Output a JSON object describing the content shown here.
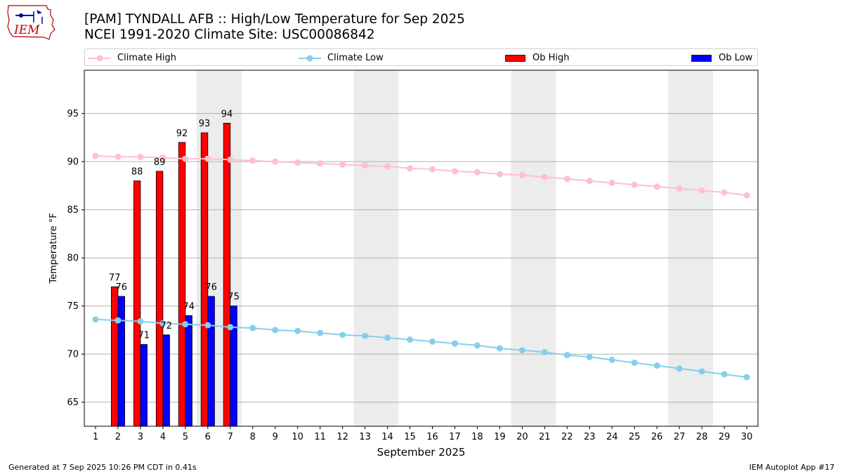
{
  "header": {
    "title_line1": "[PAM] TYNDALL AFB :: High/Low Temperature for Sep 2025",
    "title_line2": "NCEI 1991-2020 Climate Site: USC00086842",
    "logo_text": "IEM"
  },
  "footer": {
    "generated": "Generated at 7 Sep 2025 10:26 PM CDT in 0.41s",
    "app": "IEM Autoplot App #17"
  },
  "legend": {
    "climate_high": "Climate High",
    "climate_low": "Climate Low",
    "ob_high": "Ob High",
    "ob_low": "Ob Low"
  },
  "colors": {
    "climate_high": "#ffc0cb",
    "climate_low": "#87ceeb",
    "ob_high": "#ff0000",
    "ob_low": "#0000ff",
    "weekend_band": "#ececec",
    "grid": "#b0b0b0"
  },
  "chart_data": {
    "type": "bar",
    "xlabel": "September 2025",
    "ylabel": "Temperature °F",
    "xlim": [
      0.5,
      30.5
    ],
    "ylim": [
      62.5,
      99.5
    ],
    "yticks": [
      65,
      70,
      75,
      80,
      85,
      90,
      95
    ],
    "xticks": [
      1,
      2,
      3,
      4,
      5,
      6,
      7,
      8,
      9,
      10,
      11,
      12,
      13,
      14,
      15,
      16,
      17,
      18,
      19,
      20,
      21,
      22,
      23,
      24,
      25,
      26,
      27,
      28,
      29,
      30
    ],
    "grid": "horizontal",
    "legend_position": "top",
    "weekend_bands": [
      [
        5.5,
        7.5
      ],
      [
        12.5,
        14.5
      ],
      [
        19.5,
        21.5
      ],
      [
        26.5,
        28.5
      ]
    ],
    "climate_high": {
      "days": [
        1,
        2,
        3,
        4,
        5,
        6,
        7,
        8,
        9,
        10,
        11,
        12,
        13,
        14,
        15,
        16,
        17,
        18,
        19,
        20,
        21,
        22,
        23,
        24,
        25,
        26,
        27,
        28,
        29,
        30
      ],
      "values": [
        90.6,
        90.5,
        90.5,
        90.4,
        90.3,
        90.3,
        90.2,
        90.1,
        90.0,
        89.9,
        89.8,
        89.7,
        89.6,
        89.5,
        89.3,
        89.2,
        89.0,
        88.9,
        88.7,
        88.6,
        88.4,
        88.2,
        88.0,
        87.8,
        87.6,
        87.4,
        87.2,
        87.0,
        86.8,
        86.5
      ]
    },
    "climate_low": {
      "days": [
        1,
        2,
        3,
        4,
        5,
        6,
        7,
        8,
        9,
        10,
        11,
        12,
        13,
        14,
        15,
        16,
        17,
        18,
        19,
        20,
        21,
        22,
        23,
        24,
        25,
        26,
        27,
        28,
        29,
        30
      ],
      "values": [
        73.6,
        73.5,
        73.4,
        73.2,
        73.1,
        73.0,
        72.8,
        72.7,
        72.5,
        72.4,
        72.2,
        72.0,
        71.9,
        71.7,
        71.5,
        71.3,
        71.1,
        70.9,
        70.6,
        70.4,
        70.2,
        69.9,
        69.7,
        69.4,
        69.1,
        68.8,
        68.5,
        68.2,
        67.9,
        67.6
      ]
    },
    "ob_high": {
      "days": [
        2,
        3,
        4,
        5,
        6,
        7
      ],
      "values": [
        77,
        88,
        89,
        92,
        93,
        94
      ],
      "labels": [
        "77",
        "88",
        "89",
        "92",
        "93",
        "94"
      ]
    },
    "ob_low": {
      "days": [
        2,
        3,
        4,
        5,
        6,
        7
      ],
      "values": [
        76,
        71,
        72,
        74,
        76,
        75
      ],
      "labels": [
        "76",
        "71",
        "72",
        "74",
        "76",
        "75"
      ]
    }
  }
}
